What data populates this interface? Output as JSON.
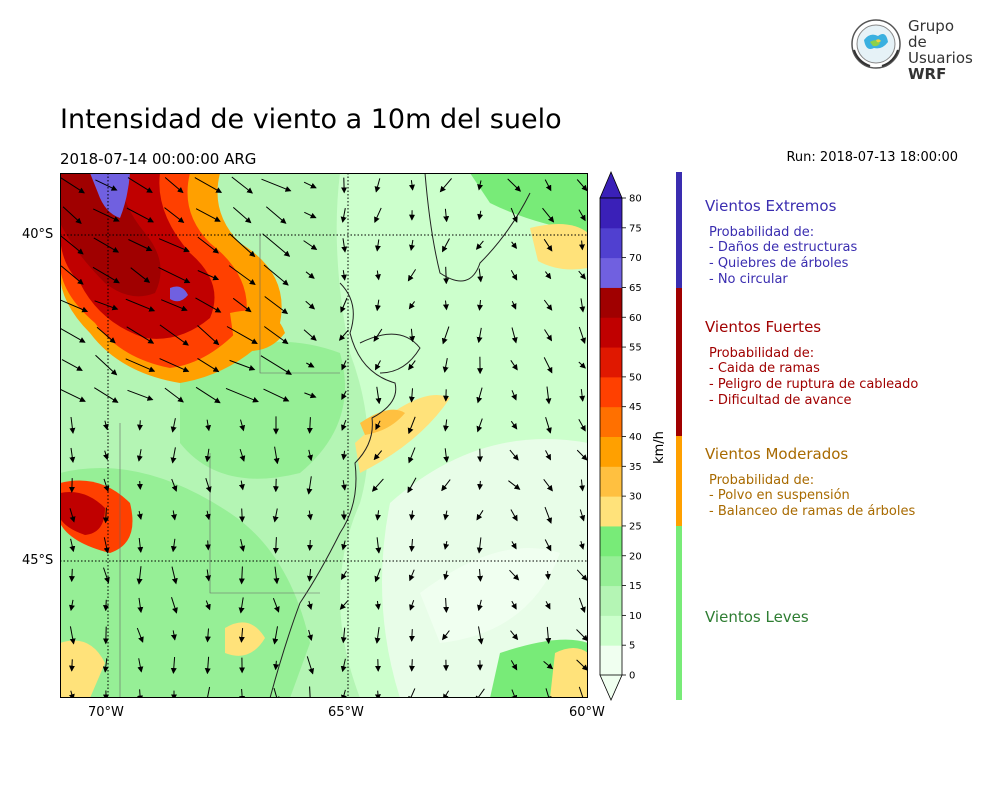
{
  "header": {
    "title": "Intensidad de viento a 10m del suelo",
    "valid_time": "2018-07-14 00:00:00 ARG",
    "run": "Run: 2018-07-13 18:00:00"
  },
  "logo": {
    "line1": "Grupo de",
    "line2": "Usuarios",
    "line3": "WRF",
    "icon": "globe-seal-icon"
  },
  "map": {
    "lat_labels": [
      "40°S",
      "45°S"
    ],
    "lon_labels": [
      "70°W",
      "65°W",
      "60°W"
    ],
    "lat_range": [
      -48,
      -39
    ],
    "lon_range": [
      -71,
      -60
    ],
    "gridlines": "dotted",
    "vector_field": "wind-arrows"
  },
  "colorbar": {
    "units": "km/h",
    "ticks": [
      "0",
      "5",
      "10",
      "15",
      "20",
      "25",
      "30",
      "35",
      "40",
      "45",
      "50",
      "55",
      "60",
      "65",
      "70",
      "75",
      "80"
    ],
    "colors": [
      "#f0fff0",
      "#ccffcc",
      "#b4f5b4",
      "#96ef96",
      "#78eb78",
      "#ffe27a",
      "#ffc040",
      "#ffa000",
      "#ff7000",
      "#ff4000",
      "#e01800",
      "#c00000",
      "#a00000",
      "#7060e0",
      "#5040d0",
      "#3a20b8"
    ],
    "extend": "both"
  },
  "legend": [
    {
      "title": "Vientos Extremos",
      "color": "#3a2db0",
      "text_color": "#3a2db0",
      "prob": "Probabilidad de:",
      "items": [
        "- Daños de estructuras",
        "- Quiebres de árboles",
        "- No circular"
      ]
    },
    {
      "title": "Vientos Fuertes",
      "color": "#a00000",
      "text_color": "#a00000",
      "prob": "Probabilidad de:",
      "items": [
        "- Caida de ramas",
        "- Peligro de ruptura de cableado",
        "- Dificultad de avance"
      ]
    },
    {
      "title": "Vientos Moderados",
      "color": "#ffa000",
      "text_color": "#a86a00",
      "prob": "Probabilidad de:",
      "items": [
        "- Polvo en suspensión",
        "- Balanceo de ramas de árboles"
      ]
    },
    {
      "title": "Vientos Leves",
      "color": "#78eb78",
      "text_color": "#2e7d32",
      "prob": "",
      "items": []
    }
  ]
}
